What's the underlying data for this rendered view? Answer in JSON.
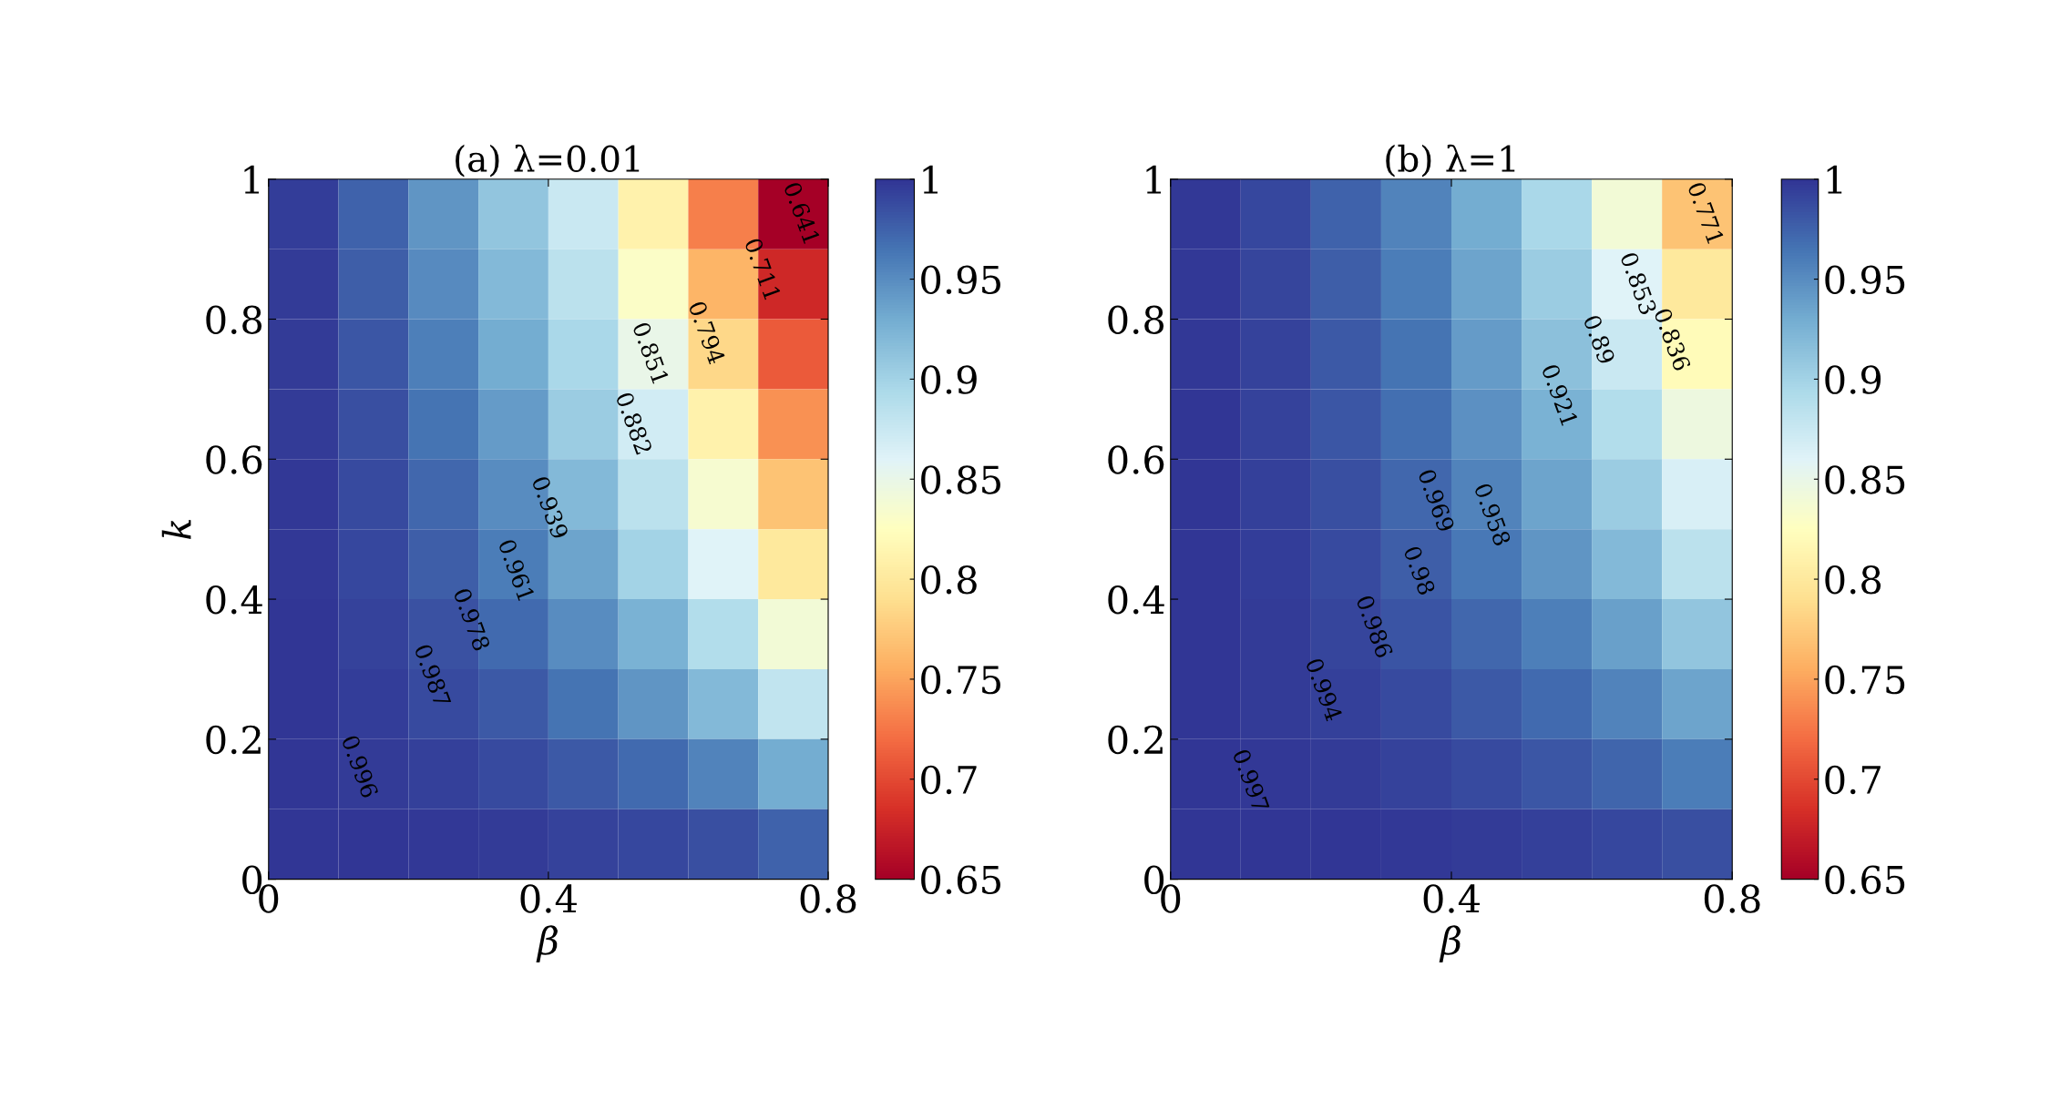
{
  "chart_data": [
    {
      "type": "heatmap",
      "title": "(a) λ=0.01",
      "xlabel": "β",
      "ylabel": "k",
      "x": [
        0.05,
        0.15,
        0.25,
        0.35,
        0.45,
        0.55,
        0.65,
        0.75
      ],
      "y": [
        0.95,
        0.85,
        0.75,
        0.65,
        0.55,
        0.45,
        0.35,
        0.25,
        0.15,
        0.05
      ],
      "cells": [
        [
          0.995,
          0.975,
          0.945,
          0.91,
          0.875,
          0.81,
          0.73,
          0.65
        ],
        [
          0.996,
          0.978,
          0.952,
          0.92,
          0.885,
          0.83,
          0.76,
          0.68
        ],
        [
          0.997,
          0.982,
          0.958,
          0.93,
          0.895,
          0.85,
          0.785,
          0.71
        ],
        [
          0.997,
          0.985,
          0.965,
          0.94,
          0.905,
          0.87,
          0.81,
          0.74
        ],
        [
          0.998,
          0.988,
          0.972,
          0.95,
          0.92,
          0.885,
          0.835,
          0.77
        ],
        [
          0.998,
          0.99,
          0.978,
          0.96,
          0.935,
          0.9,
          0.86,
          0.8
        ],
        [
          0.999,
          0.993,
          0.984,
          0.97,
          0.95,
          0.925,
          0.89,
          0.84
        ],
        [
          0.999,
          0.995,
          0.989,
          0.98,
          0.965,
          0.945,
          0.92,
          0.88
        ],
        [
          0.999,
          0.997,
          0.994,
          0.988,
          0.98,
          0.97,
          0.955,
          0.93
        ],
        [
          1.0,
          0.999,
          0.998,
          0.996,
          0.993,
          0.99,
          0.985,
          0.975
        ]
      ],
      "xlim": [
        0,
        0.8
      ],
      "xticks": [
        0,
        0.4,
        0.8
      ],
      "ylim": [
        0,
        1
      ],
      "yticks": [
        0,
        0.2,
        0.4,
        0.6,
        0.8,
        1
      ],
      "clim": [
        0.65,
        1
      ],
      "cticks": [
        0.65,
        0.7,
        0.75,
        0.8,
        0.85,
        0.9,
        0.95,
        1
      ],
      "annotations": [
        "0.996",
        "0.987",
        "0.978",
        "0.961",
        "0.939",
        "0.882",
        "0.851",
        "0.794",
        "0.711",
        "0.641"
      ]
    },
    {
      "type": "heatmap",
      "title": "(b) λ=1",
      "xlabel": "β",
      "x": [
        0.05,
        0.15,
        0.25,
        0.35,
        0.45,
        0.55,
        0.65,
        0.75
      ],
      "y": [
        0.95,
        0.85,
        0.75,
        0.65,
        0.55,
        0.45,
        0.35,
        0.25,
        0.15,
        0.05
      ],
      "cells": [
        [
          0.998,
          0.99,
          0.975,
          0.955,
          0.93,
          0.895,
          0.84,
          0.77
        ],
        [
          0.998,
          0.991,
          0.978,
          0.96,
          0.935,
          0.905,
          0.86,
          0.8
        ],
        [
          0.998,
          0.992,
          0.98,
          0.965,
          0.94,
          0.915,
          0.875,
          0.82
        ],
        [
          0.999,
          0.993,
          0.982,
          0.968,
          0.948,
          0.925,
          0.89,
          0.845
        ],
        [
          0.999,
          0.994,
          0.985,
          0.972,
          0.955,
          0.935,
          0.905,
          0.865
        ],
        [
          0.999,
          0.995,
          0.988,
          0.978,
          0.963,
          0.945,
          0.92,
          0.885
        ],
        [
          0.999,
          0.996,
          0.991,
          0.983,
          0.972,
          0.958,
          0.938,
          0.91
        ],
        [
          1.0,
          0.997,
          0.994,
          0.988,
          0.98,
          0.97,
          0.955,
          0.935
        ],
        [
          1.0,
          0.998,
          0.996,
          0.993,
          0.988,
          0.982,
          0.973,
          0.96
        ],
        [
          1.0,
          0.999,
          0.999,
          0.998,
          0.996,
          0.994,
          0.99,
          0.985
        ]
      ],
      "xlim": [
        0,
        0.8
      ],
      "xticks": [
        0,
        0.4,
        0.8
      ],
      "ylim": [
        0,
        1
      ],
      "yticks": [
        0,
        0.2,
        0.4,
        0.6,
        0.8,
        1
      ],
      "clim": [
        0.65,
        1
      ],
      "cticks": [
        0.65,
        0.7,
        0.75,
        0.8,
        0.85,
        0.9,
        0.95,
        1
      ],
      "annotations": [
        "0.997",
        "0.994",
        "0.986",
        "0.98",
        "0.969",
        "0.958",
        "0.921",
        "0.89",
        "0.853",
        "0.836",
        "0.771"
      ]
    }
  ]
}
